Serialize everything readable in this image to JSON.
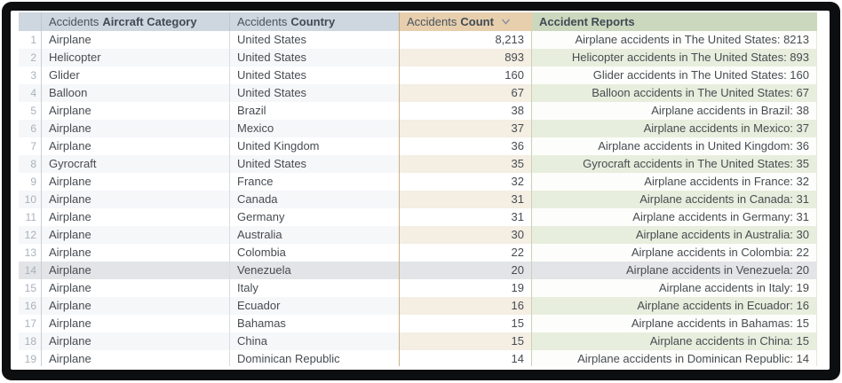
{
  "colors": {
    "frame": "#0d0e10",
    "header_default_bg": "#ced6df",
    "header_count_bg": "#e7cfad",
    "header_reports_bg": "#ccd8bd",
    "even_row_count_bg": "#f4eee3",
    "even_row_reports_bg": "#e8eedd",
    "highlight_row_bg": "#e2e4e7",
    "row_number_text": "#a9b1bb",
    "header_text": "#3f4a55",
    "body_text": "#474c51"
  },
  "table": {
    "headers": {
      "row_number": {
        "label": ""
      },
      "category": {
        "prefix": "Accidents",
        "label": "Aircraft Category"
      },
      "country": {
        "prefix": "Accidents",
        "label": "Country"
      },
      "count": {
        "prefix": "Accidents",
        "label": "Count",
        "sort": "descending"
      },
      "reports": {
        "label": "Accident Reports"
      }
    },
    "highlighted_row": 14,
    "rows": [
      {
        "row_number": "1",
        "category": "Airplane",
        "country": "United States",
        "count": "8,213",
        "report": "Airplane accidents in The United States: 8213"
      },
      {
        "row_number": "2",
        "category": "Helicopter",
        "country": "United States",
        "count": "893",
        "report": "Helicopter accidents in The United States: 893"
      },
      {
        "row_number": "3",
        "category": "Glider",
        "country": "United States",
        "count": "160",
        "report": "Glider accidents in The United States: 160"
      },
      {
        "row_number": "4",
        "category": "Balloon",
        "country": "United States",
        "count": "67",
        "report": "Balloon accidents in The United States: 67"
      },
      {
        "row_number": "5",
        "category": "Airplane",
        "country": "Brazil",
        "count": "38",
        "report": "Airplane accidents in Brazil: 38"
      },
      {
        "row_number": "6",
        "category": "Airplane",
        "country": "Mexico",
        "count": "37",
        "report": "Airplane accidents in Mexico: 37"
      },
      {
        "row_number": "7",
        "category": "Airplane",
        "country": "United Kingdom",
        "count": "36",
        "report": "Airplane accidents in United Kingdom: 36"
      },
      {
        "row_number": "8",
        "category": "Gyrocraft",
        "country": "United States",
        "count": "35",
        "report": "Gyrocraft accidents in The United States: 35"
      },
      {
        "row_number": "9",
        "category": "Airplane",
        "country": "France",
        "count": "32",
        "report": "Airplane accidents in France: 32"
      },
      {
        "row_number": "10",
        "category": "Airplane",
        "country": "Canada",
        "count": "31",
        "report": "Airplane accidents in Canada: 31"
      },
      {
        "row_number": "11",
        "category": "Airplane",
        "country": "Germany",
        "count": "31",
        "report": "Airplane accidents in Germany: 31"
      },
      {
        "row_number": "12",
        "category": "Airplane",
        "country": "Australia",
        "count": "30",
        "report": "Airplane accidents in Australia: 30"
      },
      {
        "row_number": "13",
        "category": "Airplane",
        "country": "Colombia",
        "count": "22",
        "report": "Airplane accidents in Colombia: 22"
      },
      {
        "row_number": "14",
        "category": "Airplane",
        "country": "Venezuela",
        "count": "20",
        "report": "Airplane accidents in Venezuela: 20"
      },
      {
        "row_number": "15",
        "category": "Airplane",
        "country": "Italy",
        "count": "19",
        "report": "Airplane accidents in Italy: 19"
      },
      {
        "row_number": "16",
        "category": "Airplane",
        "country": "Ecuador",
        "count": "16",
        "report": "Airplane accidents in Ecuador: 16"
      },
      {
        "row_number": "17",
        "category": "Airplane",
        "country": "Bahamas",
        "count": "15",
        "report": "Airplane accidents in Bahamas: 15"
      },
      {
        "row_number": "18",
        "category": "Airplane",
        "country": "China",
        "count": "15",
        "report": "Airplane accidents in China: 15"
      },
      {
        "row_number": "19",
        "category": "Airplane",
        "country": "Dominican Republic",
        "count": "14",
        "report": "Airplane accidents in Dominican Republic: 14"
      }
    ]
  }
}
